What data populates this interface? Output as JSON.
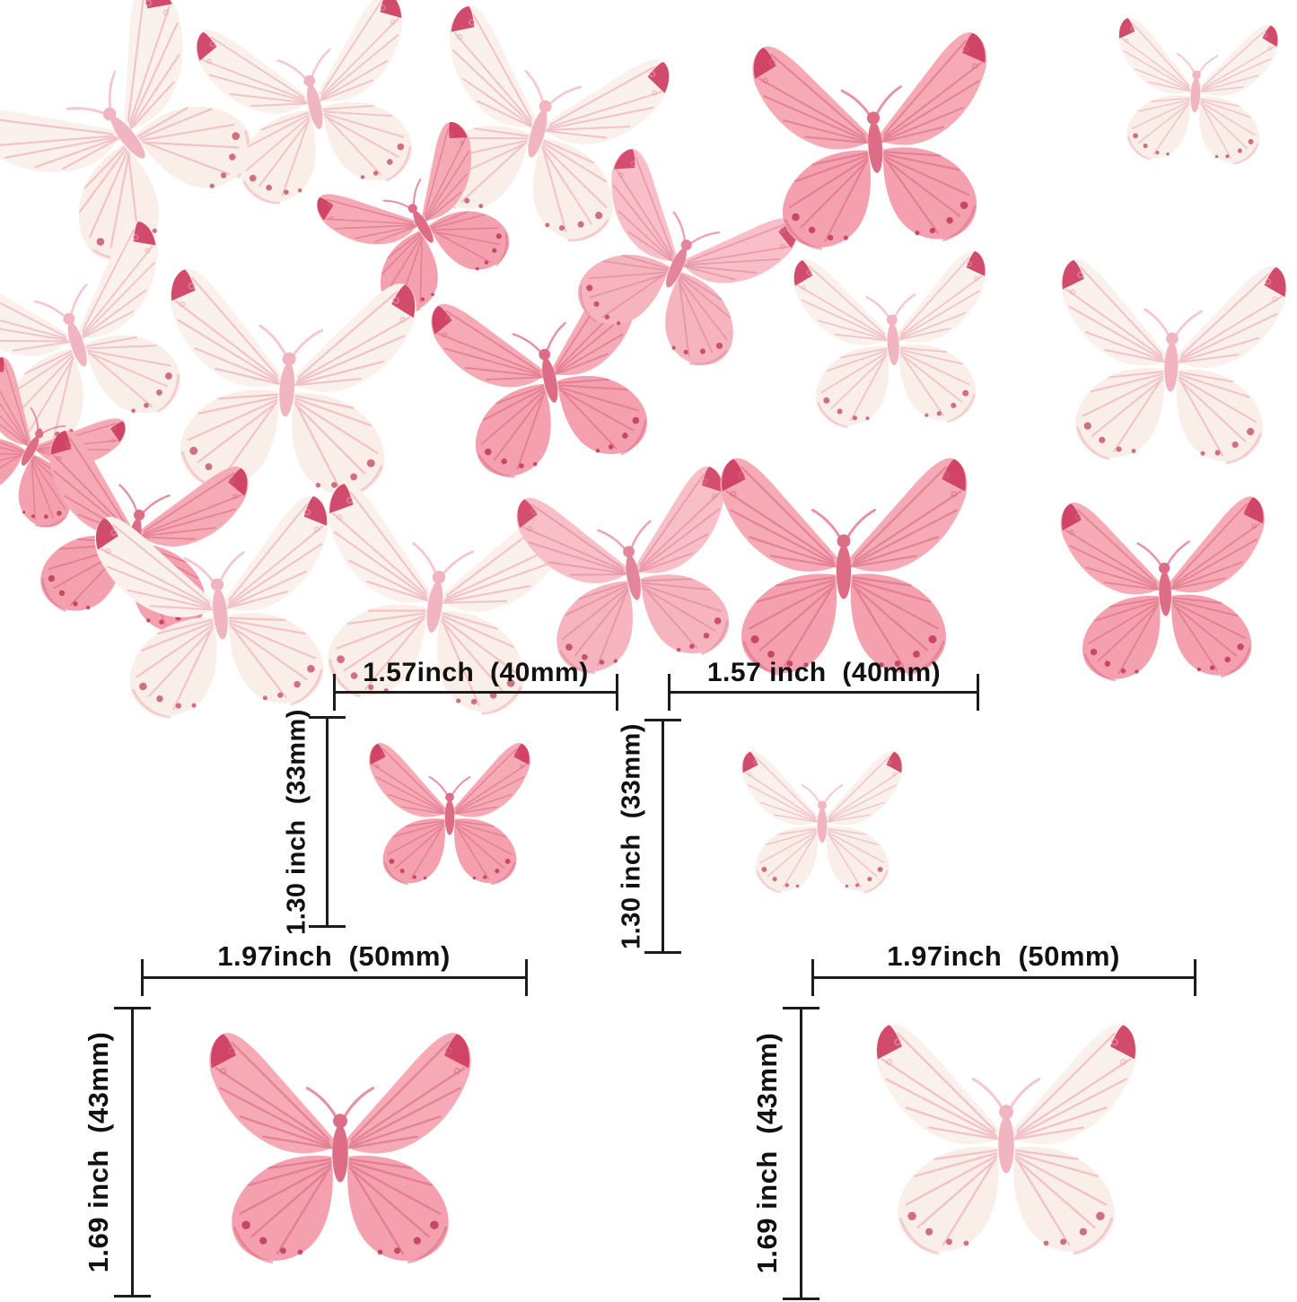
{
  "palette": {
    "pink_wing": "#f6aab5",
    "pink_wing2": "#f4a0ae",
    "pale_wing": "#fbf1ec",
    "pale_wing2": "#faeee8",
    "vein": "#d86a81",
    "pale_vein": "#eca6b2",
    "wing_tip": "#cc3a5e",
    "spot": "#bb3356",
    "body_pink": "#dd6d87",
    "body_pale": "#f0b5c0",
    "dimension_line": "#1c1c1c",
    "label_text": "#111111"
  },
  "diagrams": {
    "small_left": {
      "width_label": "1.57inch  (40mm)",
      "height_label": "1.30 inch  (33mm)"
    },
    "small_right": {
      "width_label": "1.57 inch  (40mm)",
      "height_label": "1.30 inch  (33mm)"
    },
    "large_left": {
      "width_label": "1.97inch  (50mm)",
      "height_label": "1.69 inch  (43mm)"
    },
    "large_right": {
      "width_label": "1.97inch  (50mm)",
      "height_label": "1.69 inch  (43mm)"
    }
  }
}
